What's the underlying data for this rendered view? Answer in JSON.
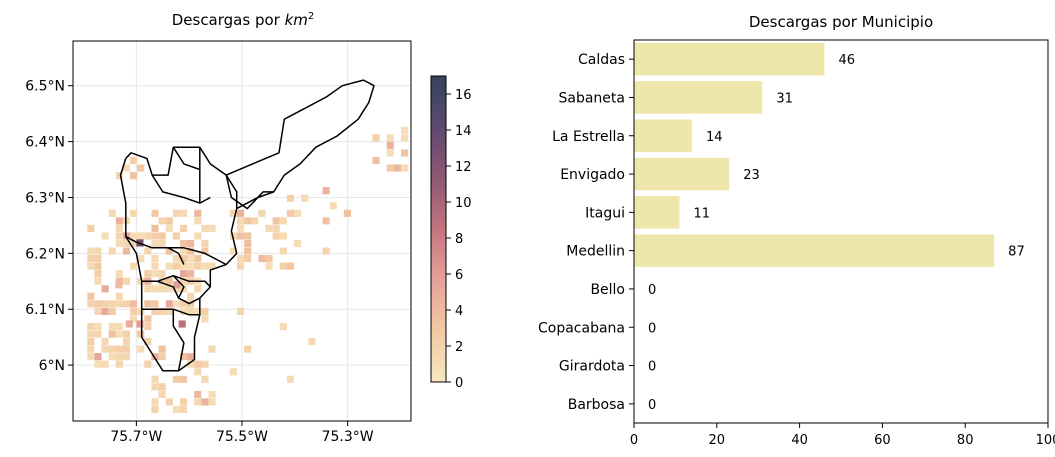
{
  "chart_data": [
    {
      "type": "heatmap",
      "title_main": "Descargas por ",
      "title_var": "km",
      "title_sup": "2",
      "x_ticks": [
        -75.7,
        -75.5,
        -75.3
      ],
      "x_tick_labels": [
        "75.7°W",
        "75.5°W",
        "75.3°W"
      ],
      "y_ticks": [
        6.0,
        6.1,
        6.2,
        6.3,
        6.4,
        6.5
      ],
      "y_tick_labels": [
        "6°N",
        "6.1°N",
        "6.2°N",
        "6.3°N",
        "6.4°N",
        "6.5°N"
      ],
      "xlim": [
        -75.82,
        -75.18
      ],
      "ylim": [
        5.9,
        6.58
      ],
      "grid": true,
      "colorbar": {
        "min": 0,
        "max": 17,
        "ticks": [
          0,
          2,
          4,
          6,
          8,
          10,
          12,
          14,
          16
        ],
        "colors": [
          "#f7e8c0",
          "#f2c9a3",
          "#e6a29a",
          "#c4747f",
          "#8e5873",
          "#5c4a6e",
          "#34435f"
        ]
      },
      "boundaries": [
        [
          [
            -75.72,
            6.37
          ],
          [
            -75.71,
            6.38
          ],
          [
            -75.68,
            6.37
          ],
          [
            -75.67,
            6.34
          ],
          [
            -75.64,
            6.34
          ],
          [
            -75.63,
            6.39
          ],
          [
            -75.58,
            6.39
          ],
          [
            -75.56,
            6.36
          ],
          [
            -75.53,
            6.34
          ],
          [
            -75.48,
            6.36
          ],
          [
            -75.43,
            6.38
          ],
          [
            -75.42,
            6.44
          ],
          [
            -75.38,
            6.46
          ],
          [
            -75.34,
            6.48
          ],
          [
            -75.31,
            6.5
          ],
          [
            -75.27,
            6.51
          ],
          [
            -75.25,
            6.5
          ],
          [
            -75.26,
            6.47
          ],
          [
            -75.28,
            6.44
          ],
          [
            -75.32,
            6.41
          ],
          [
            -75.36,
            6.39
          ],
          [
            -75.39,
            6.36
          ],
          [
            -75.42,
            6.34
          ],
          [
            -75.44,
            6.31
          ],
          [
            -75.47,
            6.3
          ],
          [
            -75.51,
            6.28
          ],
          [
            -75.52,
            6.24
          ],
          [
            -75.51,
            6.2
          ],
          [
            -75.53,
            6.18
          ],
          [
            -75.56,
            6.17
          ],
          [
            -75.56,
            6.14
          ],
          [
            -75.58,
            6.12
          ],
          [
            -75.58,
            6.09
          ],
          [
            -75.59,
            6.05
          ],
          [
            -75.59,
            6.01
          ],
          [
            -75.62,
            5.99
          ],
          [
            -75.65,
            5.99
          ],
          [
            -75.67,
            6.02
          ],
          [
            -75.69,
            6.05
          ],
          [
            -75.69,
            6.1
          ],
          [
            -75.69,
            6.15
          ],
          [
            -75.7,
            6.2
          ],
          [
            -75.72,
            6.23
          ],
          [
            -75.72,
            6.29
          ],
          [
            -75.73,
            6.34
          ],
          [
            -75.72,
            6.37
          ]
        ],
        [
          [
            -75.67,
            6.34
          ],
          [
            -75.65,
            6.31
          ],
          [
            -75.61,
            6.3
          ],
          [
            -75.58,
            6.29
          ],
          [
            -75.56,
            6.3
          ]
        ],
        [
          [
            -75.63,
            6.39
          ],
          [
            -75.61,
            6.36
          ],
          [
            -75.58,
            6.35
          ]
        ],
        [
          [
            -75.58,
            6.39
          ],
          [
            -75.58,
            6.29
          ]
        ],
        [
          [
            -75.53,
            6.34
          ],
          [
            -75.51,
            6.31
          ],
          [
            -75.51,
            6.28
          ]
        ],
        [
          [
            -75.53,
            6.34
          ],
          [
            -75.52,
            6.3
          ],
          [
            -75.49,
            6.28
          ],
          [
            -75.46,
            6.31
          ],
          [
            -75.44,
            6.31
          ]
        ],
        [
          [
            -75.72,
            6.23
          ],
          [
            -75.7,
            6.22
          ],
          [
            -75.67,
            6.21
          ],
          [
            -75.64,
            6.21
          ],
          [
            -75.61,
            6.21
          ],
          [
            -75.57,
            6.2
          ],
          [
            -75.53,
            6.18
          ]
        ],
        [
          [
            -75.69,
            6.15
          ],
          [
            -75.66,
            6.15
          ],
          [
            -75.63,
            6.16
          ],
          [
            -75.6,
            6.15
          ],
          [
            -75.57,
            6.15
          ],
          [
            -75.56,
            6.14
          ]
        ],
        [
          [
            -75.64,
            6.21
          ],
          [
            -75.62,
            6.2
          ],
          [
            -75.61,
            6.18
          ]
        ],
        [
          [
            -75.66,
            6.15
          ],
          [
            -75.63,
            6.14
          ],
          [
            -75.62,
            6.12
          ],
          [
            -75.6,
            6.11
          ],
          [
            -75.58,
            6.12
          ]
        ],
        [
          [
            -75.63,
            6.16
          ],
          [
            -75.61,
            6.14
          ],
          [
            -75.62,
            6.12
          ]
        ],
        [
          [
            -75.69,
            6.1
          ],
          [
            -75.66,
            6.1
          ],
          [
            -75.63,
            6.1
          ],
          [
            -75.6,
            6.09
          ],
          [
            -75.58,
            6.09
          ]
        ],
        [
          [
            -75.63,
            6.1
          ],
          [
            -75.63,
            6.07
          ],
          [
            -75.61,
            6.04
          ],
          [
            -75.62,
            5.99
          ]
        ]
      ]
    },
    {
      "type": "bar",
      "orientation": "horizontal",
      "title": "Descargas por Municipio",
      "categories": [
        "Caldas",
        "Sabaneta",
        "La Estrella",
        "Envigado",
        "Itagui",
        "Medellin",
        "Bello",
        "Copacabana",
        "Girardota",
        "Barbosa"
      ],
      "values": [
        46,
        31,
        14,
        23,
        11,
        87,
        0,
        0,
        0,
        0
      ],
      "value_labels": [
        "46",
        "31",
        "14",
        "23",
        "11",
        "87",
        "0",
        "0",
        "0",
        "0"
      ],
      "xlim": [
        0,
        100
      ],
      "x_ticks": [
        0,
        20,
        40,
        60,
        80,
        100
      ],
      "x_tick_labels": [
        "0",
        "20",
        "40",
        "60",
        "80",
        "100"
      ],
      "bar_color": "#efe6ab",
      "grid": false
    }
  ]
}
